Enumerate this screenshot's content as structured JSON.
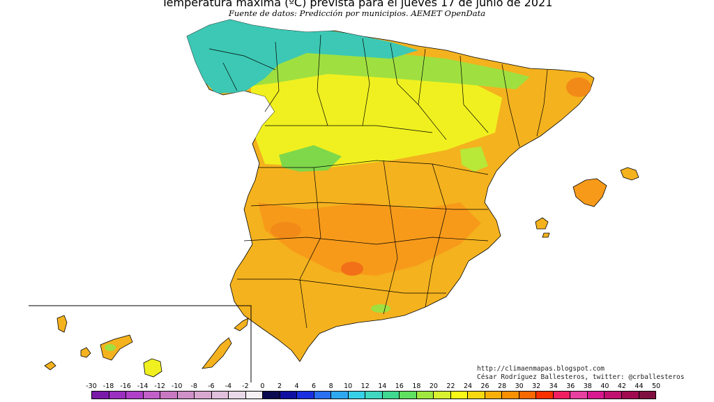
{
  "header": {
    "title": "Temperatura máxima (ºC) prevista para el jueves 17 de junio de 2021",
    "subtitle": "Fuente de datos: Predicción por municipios. AEMET OpenData"
  },
  "credits": {
    "url": "http://climaenmapas.blogspot.com",
    "author": "César Rodríguez Ballesteros, twitter: @crballesteros"
  },
  "legend": {
    "ticks": [
      "-30",
      "-18",
      "-16",
      "-14",
      "-12",
      "-10",
      "-8",
      "-6",
      "-4",
      "-2",
      "0",
      "2",
      "4",
      "6",
      "8",
      "10",
      "12",
      "14",
      "16",
      "18",
      "20",
      "22",
      "24",
      "26",
      "28",
      "30",
      "32",
      "34",
      "36",
      "38",
      "40",
      "42",
      "44",
      "50"
    ],
    "colors": [
      "#7a1aa8",
      "#9b30c0",
      "#b040c8",
      "#c060c8",
      "#c878c0",
      "#d090c8",
      "#d8a8d0",
      "#e0c0dc",
      "#e8d8e8",
      "#f4f0f4",
      "#0a0a50",
      "#1010a0",
      "#1a30e0",
      "#2a70f0",
      "#30a8f0",
      "#38d0e8",
      "#40d8c0",
      "#40d890",
      "#60e060",
      "#a0e840",
      "#d8f030",
      "#f8f818",
      "#f8d810",
      "#f8b008",
      "#f89000",
      "#f86800",
      "#f83000",
      "#f02060",
      "#e840a0",
      "#d81890",
      "#c01070",
      "#a00a50",
      "#801040"
    ]
  },
  "map": {
    "colors": {
      "cool": "#3cc8b4",
      "mild": "#9fe040",
      "warm_yellow": "#f0f020",
      "hot": "#f4b21e",
      "hotter": "#f79a1a",
      "hottest": "#f27018",
      "border": "#000000"
    }
  }
}
